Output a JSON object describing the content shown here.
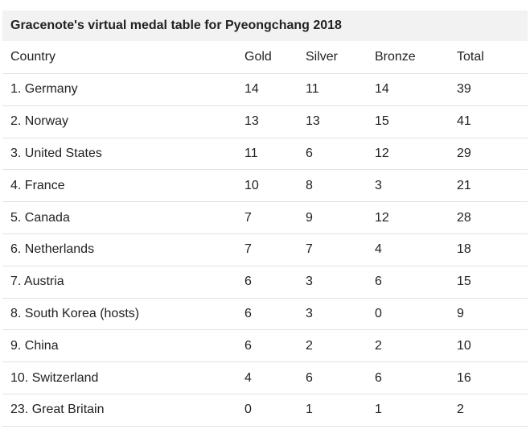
{
  "title": "Gracenote's virtual medal table for Pyeongchang 2018",
  "columns": [
    "Country",
    "Gold",
    "Silver",
    "Bronze",
    "Total"
  ],
  "rows": [
    {
      "country": "1. Germany",
      "gold": "14",
      "silver": "11",
      "bronze": "14",
      "total": "39"
    },
    {
      "country": "2. Norway",
      "gold": "13",
      "silver": "13",
      "bronze": "15",
      "total": "41"
    },
    {
      "country": "3. United States",
      "gold": "11",
      "silver": "6",
      "bronze": "12",
      "total": "29"
    },
    {
      "country": "4. France",
      "gold": "10",
      "silver": "8",
      "bronze": "3",
      "total": "21"
    },
    {
      "country": "5. Canada",
      "gold": "7",
      "silver": "9",
      "bronze": "12",
      "total": "28"
    },
    {
      "country": "6. Netherlands",
      "gold": "7",
      "silver": "7",
      "bronze": "4",
      "total": "18"
    },
    {
      "country": "7. Austria",
      "gold": "6",
      "silver": "3",
      "bronze": "6",
      "total": "15"
    },
    {
      "country": "8. South Korea (hosts)",
      "gold": "6",
      "silver": "3",
      "bronze": "0",
      "total": "9"
    },
    {
      "country": "9. China",
      "gold": "6",
      "silver": "2",
      "bronze": "2",
      "total": "10"
    },
    {
      "country": "10. Switzerland",
      "gold": "4",
      "silver": "6",
      "bronze": "6",
      "total": "16"
    },
    {
      "country": "23. Great Britain",
      "gold": "0",
      "silver": "1",
      "bronze": "1",
      "total": "2"
    }
  ]
}
